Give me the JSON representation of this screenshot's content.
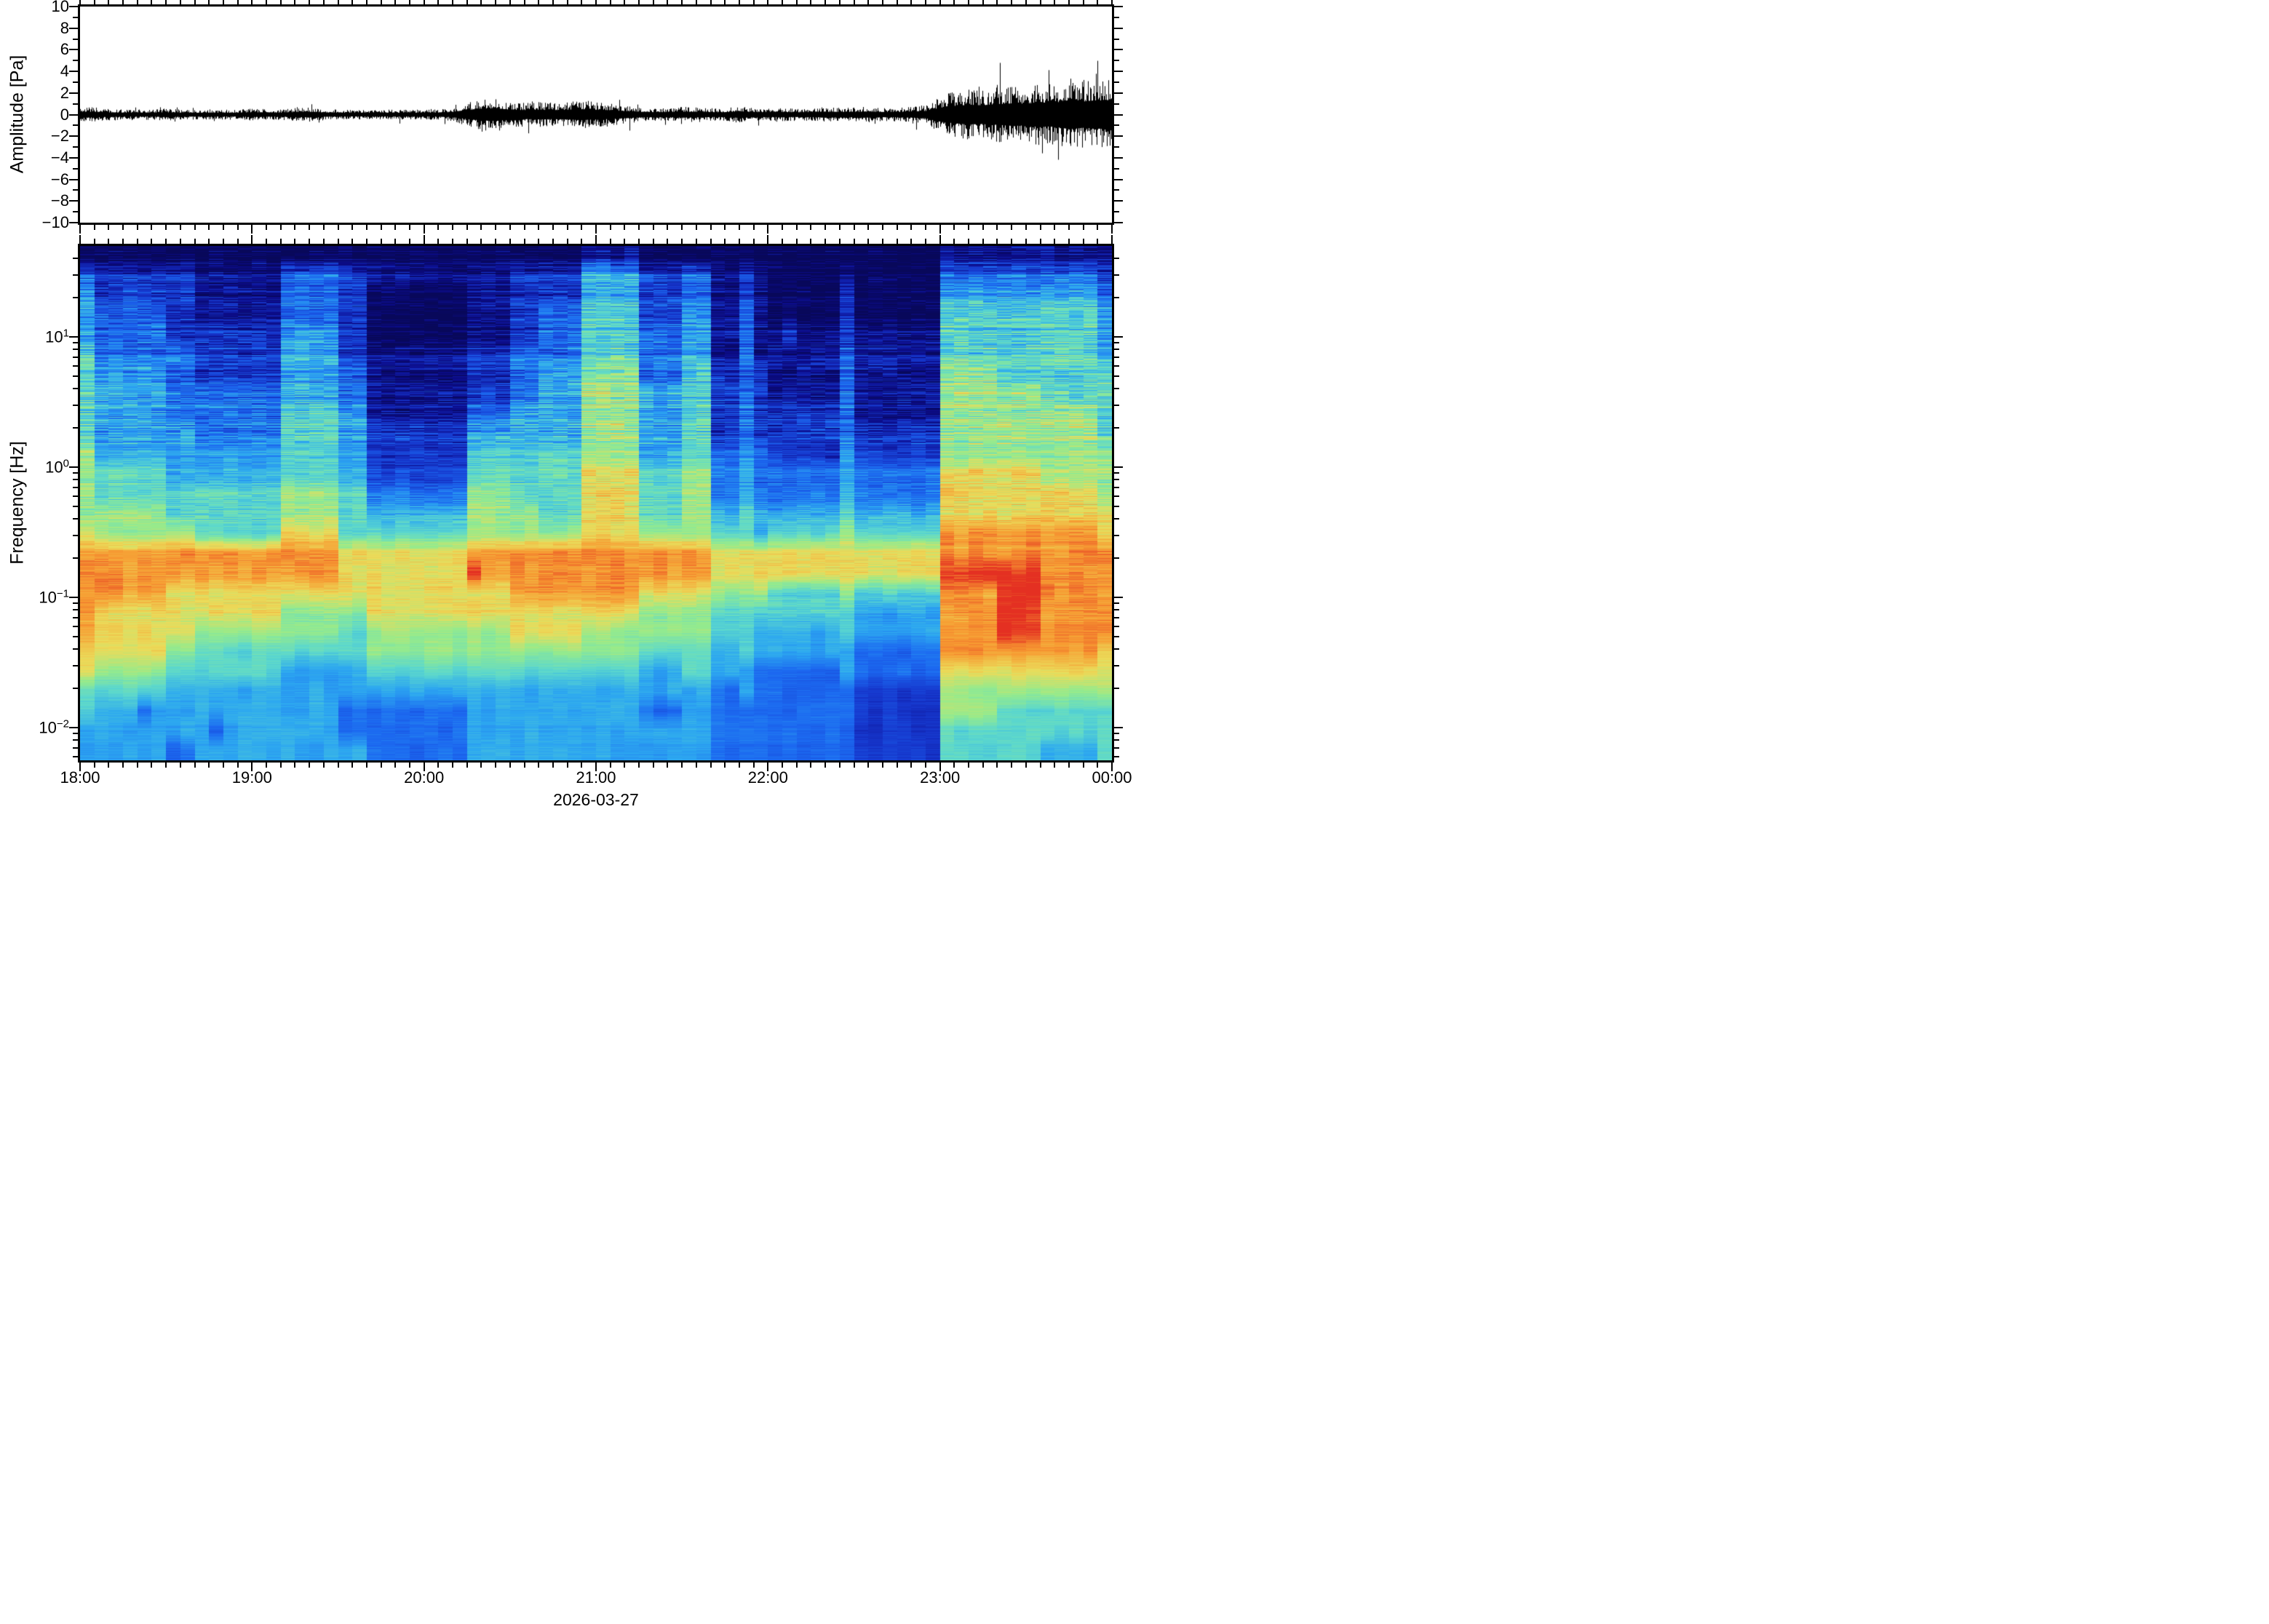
{
  "figure": {
    "background": "#ffffff",
    "frame_color": "#000000",
    "text_color": "#000000"
  },
  "waveform_panel": {
    "ylabel": "Amplitude [Pa]",
    "ylim": [
      -10,
      10
    ],
    "ytick_values": [
      10,
      8,
      6,
      4,
      2,
      0,
      -2,
      -4,
      -6,
      -8,
      -10
    ],
    "ytick_labels": [
      "10",
      "8",
      "6",
      "4",
      "2",
      "0",
      "−2",
      "−4",
      "−6",
      "−8",
      "−10"
    ],
    "minor_tick_step": 1,
    "trace_color": "#000000"
  },
  "spectrogram_panel": {
    "ylabel": "Frequency [Hz]",
    "y_scale": "log",
    "freq_top_hz": 50,
    "freq_bottom_hz": 0.0056,
    "yticks": [
      {
        "base": "10",
        "exp": "1",
        "f": 10
      },
      {
        "base": "10",
        "exp": "0",
        "f": 1
      },
      {
        "base": "10",
        "exp": "−1",
        "f": 0.1
      },
      {
        "base": "10",
        "exp": "−2",
        "f": 0.01
      }
    ]
  },
  "time_axis": {
    "tick_labels": [
      "18:00",
      "19:00",
      "20:00",
      "21:00",
      "22:00",
      "23:00",
      "00:00"
    ],
    "minor_tick_minutes": 5,
    "xlabel": "2026-03-27"
  },
  "chart_data": [
    {
      "type": "line",
      "name": "infrasound-pressure-waveform",
      "ylabel": "Amplitude [Pa]",
      "ylim": [
        -10,
        10
      ],
      "x_start": "18:00",
      "x_end": "00:00",
      "bin_minutes": 5,
      "envelope_note": "approximate peak envelope (Pa) of each 5-min bin; quiet microbarom noise until ~23:00, bursts near 20:15-21:15, loud spiky noise 23:00-00:00",
      "envelope_pa": [
        0.3,
        0.28,
        0.22,
        0.2,
        0.2,
        0.2,
        0.24,
        0.2,
        0.19,
        0.2,
        0.19,
        0.2,
        0.24,
        0.22,
        0.2,
        0.26,
        0.28,
        0.22,
        0.2,
        0.19,
        0.19,
        0.2,
        0.19,
        0.2,
        0.2,
        0.2,
        0.25,
        0.45,
        0.6,
        0.65,
        0.5,
        0.45,
        0.5,
        0.45,
        0.5,
        0.55,
        0.5,
        0.45,
        0.35,
        0.28,
        0.25,
        0.25,
        0.3,
        0.28,
        0.25,
        0.24,
        0.34,
        0.26,
        0.24,
        0.26,
        0.24,
        0.25,
        0.3,
        0.26,
        0.28,
        0.3,
        0.26,
        0.26,
        0.3,
        0.38,
        0.7,
        0.9,
        1.0,
        0.95,
        1.05,
        1.15,
        1.1,
        1.25,
        1.2,
        1.5,
        1.35,
        1.45
      ]
    },
    {
      "type": "heatmap",
      "name": "spectrogram",
      "ylabel": "Frequency [Hz]",
      "y_scale": "log",
      "x_start": "18:00",
      "x_end": "00:00",
      "column_minutes": 5,
      "n_columns": 72,
      "value_scale": "relative spectral power, 0 = lowest (dark navy) to 9 = highest (red)",
      "segment_lengths": [
        1,
        5,
        2,
        6,
        4,
        2,
        7,
        3,
        2,
        3,
        4,
        3,
        2,
        2,
        1,
        1,
        5,
        1,
        5,
        1,
        4,
        3,
        4,
        1
      ],
      "segment_start_cols": [
        0,
        1,
        6,
        8,
        14,
        18,
        20,
        27,
        30,
        32,
        35,
        39,
        42,
        44,
        46,
        47,
        48,
        53,
        54,
        59,
        60,
        64,
        67,
        71
      ],
      "rows": [
        {
          "f_hz": 42,
          "v": [
            0,
            0,
            0,
            0,
            0,
            0,
            0,
            0,
            0,
            0,
            1,
            0,
            0,
            0,
            0,
            0,
            0,
            0,
            0,
            0,
            1,
            1,
            1,
            1
          ]
        },
        {
          "f_hz": 30,
          "v": [
            3,
            2,
            2,
            1,
            3,
            2,
            1,
            1,
            2,
            2,
            4,
            2,
            3,
            1,
            2,
            1,
            0,
            1,
            0,
            0,
            3,
            3,
            3,
            2
          ]
        },
        {
          "f_hz": 21,
          "v": [
            4,
            2,
            2,
            1,
            3,
            2,
            0,
            1,
            2,
            2,
            4,
            2,
            3,
            1,
            2,
            1,
            0,
            2,
            0,
            0,
            4,
            4,
            4,
            3
          ],
          "ov": {
            "53": 2
          }
        },
        {
          "f_hz": 15,
          "v": [
            4,
            3,
            2,
            1,
            3,
            2,
            0,
            1,
            2,
            3,
            5,
            2,
            4,
            1,
            3,
            1,
            0,
            2,
            0,
            0,
            5,
            5,
            5,
            4
          ],
          "ov": {
            "49": 1,
            "53": 2
          }
        },
        {
          "f_hz": 10.5,
          "v": [
            4,
            3,
            2,
            2,
            4,
            2,
            0,
            1,
            2,
            3,
            5,
            3,
            4,
            1,
            3,
            1,
            1,
            2,
            1,
            1,
            5,
            5,
            5,
            4
          ],
          "ov": {
            "49": 2,
            "53": 2
          }
        },
        {
          "f_hz": 7.4,
          "v": [
            5,
            3,
            3,
            2,
            4,
            2,
            1,
            2,
            3,
            3,
            5,
            3,
            4,
            1,
            3,
            1,
            1,
            3,
            1,
            1,
            5,
            5,
            5,
            4
          ],
          "ov": {
            "53": 3
          }
        },
        {
          "f_hz": 5.2,
          "v": [
            5,
            4,
            3,
            2,
            4,
            3,
            1,
            2,
            3,
            4,
            6,
            3,
            5,
            2,
            3,
            2,
            1,
            3,
            1,
            1,
            6,
            5,
            5,
            5
          ],
          "ov": {
            "53": 3
          }
        },
        {
          "f_hz": 3.7,
          "v": [
            5,
            4,
            3,
            3,
            4,
            3,
            1,
            2,
            3,
            4,
            6,
            4,
            5,
            2,
            3,
            2,
            1,
            3,
            1,
            1,
            6,
            6,
            5,
            5
          ],
          "ov": {
            "53": 3
          }
        },
        {
          "f_hz": 2.6,
          "v": [
            5,
            4,
            3,
            3,
            5,
            4,
            1,
            3,
            4,
            4,
            6,
            4,
            5,
            2,
            3,
            2,
            2,
            3,
            1,
            1,
            6,
            6,
            6,
            5
          ],
          "ov": {
            "53": 3
          }
        },
        {
          "f_hz": 1.8,
          "v": [
            5,
            4,
            4,
            3,
            5,
            4,
            2,
            4,
            4,
            4,
            6,
            4,
            5,
            2,
            3,
            2,
            2,
            3,
            2,
            2,
            6,
            6,
            6,
            5
          ],
          "ov": {
            "53": 3
          }
        },
        {
          "f_hz": 1.3,
          "v": [
            6,
            4,
            4,
            4,
            5,
            4,
            2,
            5,
            5,
            5,
            6,
            4,
            5,
            3,
            4,
            3,
            2,
            4,
            2,
            2,
            6,
            6,
            6,
            6
          ],
          "ov": {
            "53": 4
          }
        },
        {
          "f_hz": 0.91,
          "v": [
            6,
            5,
            4,
            4,
            5,
            4,
            2,
            5,
            5,
            5,
            7,
            5,
            6,
            3,
            4,
            3,
            3,
            4,
            3,
            3,
            7,
            7,
            6,
            6
          ]
        },
        {
          "f_hz": 0.64,
          "v": [
            6,
            5,
            5,
            5,
            6,
            5,
            3,
            6,
            5,
            5,
            7,
            5,
            6,
            3,
            4,
            3,
            3,
            4,
            3,
            3,
            7,
            7,
            7,
            6
          ]
        },
        {
          "f_hz": 0.45,
          "v": [
            6,
            6,
            5,
            5,
            6,
            5,
            4,
            6,
            6,
            5,
            7,
            5,
            6,
            4,
            5,
            4,
            4,
            5,
            4,
            4,
            7,
            7,
            7,
            7
          ]
        },
        {
          "f_hz": 0.32,
          "v": [
            7,
            6,
            6,
            5,
            7,
            5,
            5,
            6,
            6,
            6,
            7,
            6,
            6,
            5,
            5,
            4,
            5,
            6,
            5,
            5,
            8,
            8,
            8,
            7
          ]
        },
        {
          "f_hz": 0.22,
          "v": [
            8,
            8,
            8,
            8,
            8,
            7,
            7,
            8,
            8,
            8,
            8,
            8,
            8,
            7,
            7,
            7,
            7,
            7,
            7,
            7,
            8,
            8,
            8,
            8
          ]
        },
        {
          "f_hz": 0.16,
          "v": [
            8,
            8,
            8,
            8,
            8,
            7,
            7,
            8,
            8,
            8,
            8,
            8,
            8,
            7,
            7,
            7,
            7,
            7,
            7,
            7,
            9,
            9,
            8,
            8
          ],
          "ov": {
            "27": 9
          }
        },
        {
          "f_hz": 0.11,
          "v": [
            8,
            8,
            7,
            7,
            7,
            7,
            7,
            7,
            8,
            8,
            8,
            7,
            7,
            6,
            6,
            6,
            5,
            6,
            5,
            5,
            8,
            9,
            8,
            8
          ]
        },
        {
          "f_hz": 0.079,
          "v": [
            8,
            7,
            7,
            7,
            6,
            6,
            7,
            7,
            7,
            7,
            7,
            6,
            6,
            5,
            5,
            5,
            5,
            5,
            4,
            4,
            8,
            9,
            8,
            8
          ]
        },
        {
          "f_hz": 0.056,
          "v": [
            8,
            7,
            7,
            6,
            6,
            5,
            6,
            6,
            7,
            7,
            6,
            6,
            6,
            5,
            5,
            4,
            4,
            5,
            4,
            4,
            8,
            9,
            8,
            8
          ]
        },
        {
          "f_hz": 0.039,
          "v": [
            7,
            7,
            6,
            5,
            5,
            5,
            6,
            6,
            6,
            6,
            6,
            5,
            5,
            4,
            5,
            4,
            4,
            4,
            3,
            3,
            8,
            8,
            8,
            7
          ]
        },
        {
          "f_hz": 0.028,
          "v": [
            7,
            6,
            5,
            5,
            4,
            4,
            5,
            5,
            5,
            5,
            5,
            4,
            5,
            4,
            4,
            3,
            3,
            4,
            3,
            3,
            7,
            7,
            7,
            7
          ]
        },
        {
          "f_hz": 0.02,
          "v": [
            5,
            5,
            4,
            4,
            4,
            4,
            4,
            4,
            4,
            4,
            4,
            4,
            4,
            3,
            4,
            3,
            3,
            3,
            2,
            2,
            6,
            6,
            6,
            6
          ]
        },
        {
          "f_hz": 0.014,
          "v": [
            5,
            4,
            4,
            4,
            4,
            3,
            3,
            4,
            4,
            4,
            4,
            3,
            4,
            3,
            3,
            3,
            3,
            3,
            2,
            2,
            6,
            5,
            5,
            5
          ],
          "ov": {
            "4": 3,
            "57": 2
          }
        },
        {
          "f_hz": 0.0098,
          "v": [
            4,
            4,
            4,
            4,
            4,
            3,
            3,
            4,
            4,
            4,
            4,
            4,
            4,
            3,
            3,
            3,
            3,
            3,
            2,
            2,
            5,
            5,
            5,
            5
          ],
          "ov": {
            "9": 3,
            "57": 2,
            "58": 2
          }
        },
        {
          "f_hz": 0.0069,
          "v": [
            4,
            4,
            3,
            4,
            4,
            4,
            3,
            4,
            4,
            4,
            4,
            4,
            4,
            3,
            3,
            3,
            3,
            3,
            2,
            2,
            5,
            5,
            4,
            5
          ],
          "ov": {
            "57": 2,
            "58": 2
          }
        }
      ]
    }
  ],
  "colormap": {
    "name": "jet-like",
    "stops": [
      [
        0.0,
        8,
        8,
        90
      ],
      [
        0.11,
        12,
        12,
        140
      ],
      [
        0.22,
        22,
        55,
        205
      ],
      [
        0.33,
        28,
        105,
        240
      ],
      [
        0.445,
        45,
        168,
        240
      ],
      [
        0.556,
        92,
        216,
        205
      ],
      [
        0.667,
        150,
        235,
        140
      ],
      [
        0.778,
        235,
        220,
        90
      ],
      [
        0.89,
        247,
        155,
        50
      ],
      [
        1.0,
        228,
        48,
        34
      ]
    ]
  }
}
